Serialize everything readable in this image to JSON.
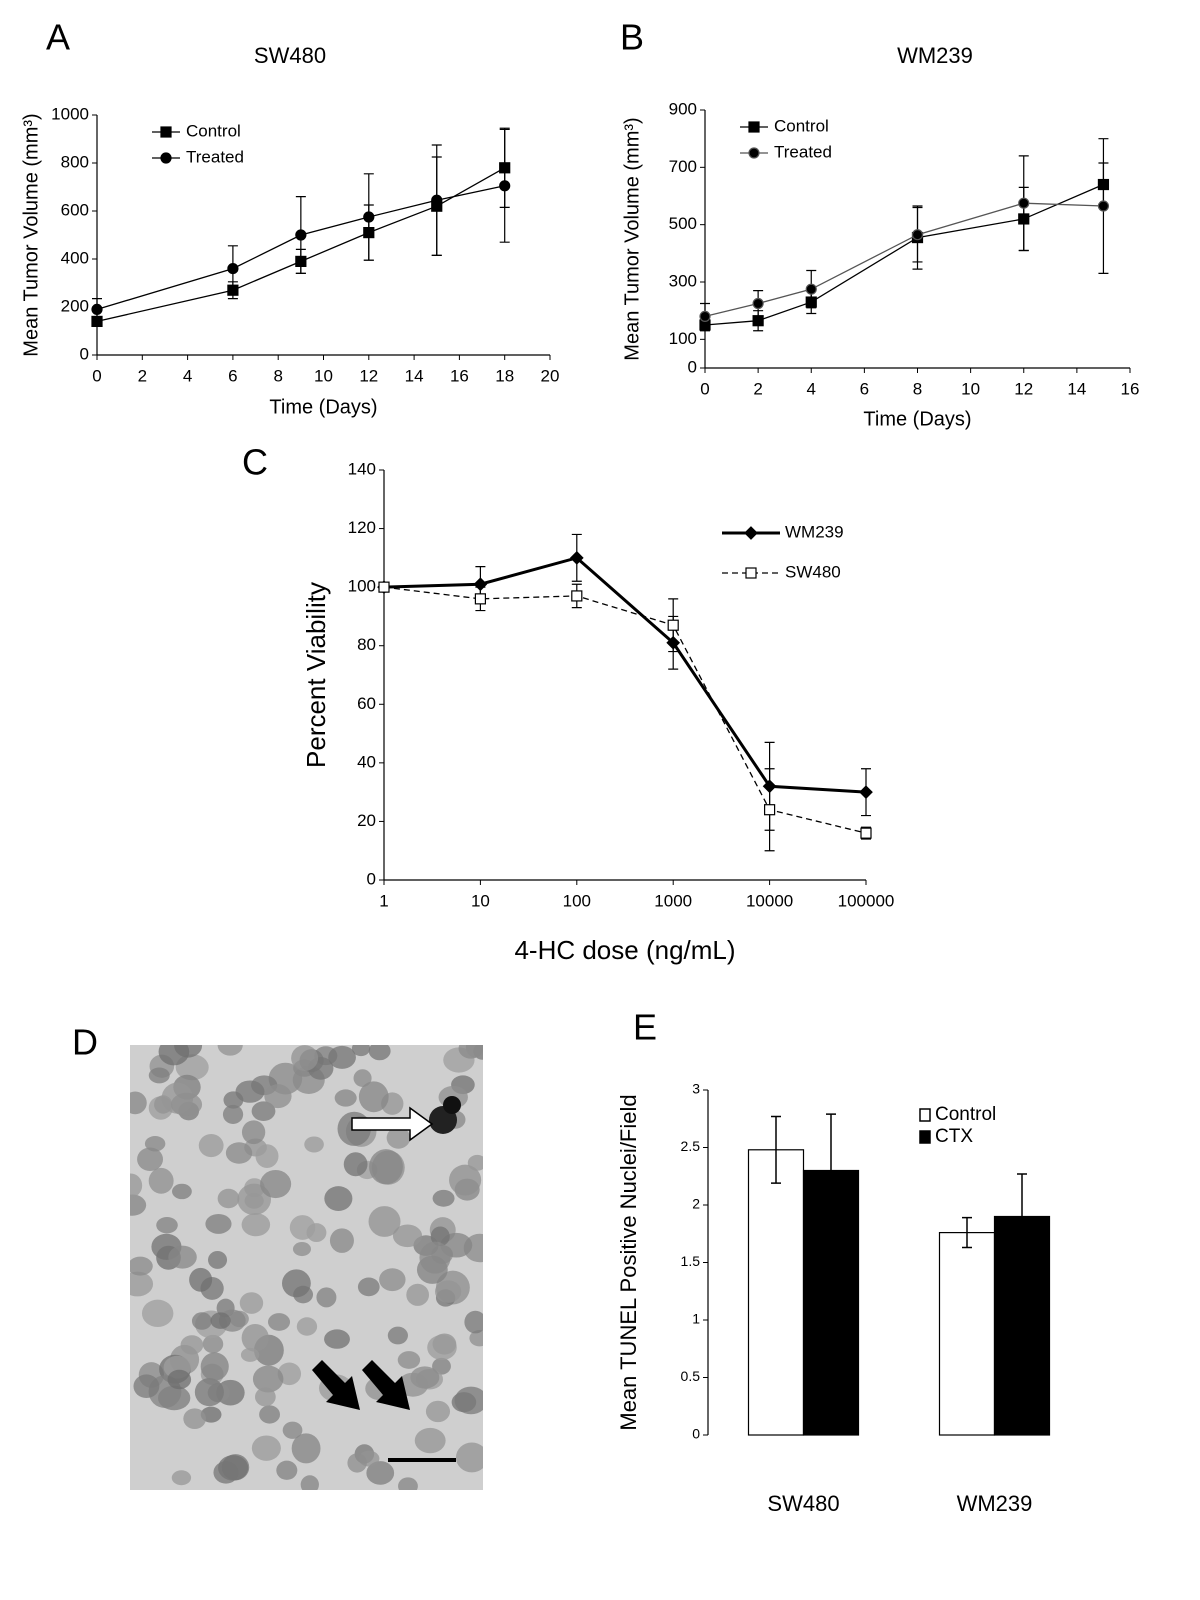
{
  "chart_data": [
    {
      "type": "line",
      "label": "A",
      "title": "SW480",
      "xlabel": "Time (Days)",
      "ylabel": "Mean Tumor Volume (mm³)",
      "xlim": [
        0,
        20
      ],
      "xticks": [
        0,
        2,
        4,
        6,
        8,
        10,
        12,
        14,
        16,
        18,
        20
      ],
      "ylim": [
        0,
        1000
      ],
      "yticks": [
        0,
        200,
        400,
        600,
        800,
        1000
      ],
      "series": [
        {
          "name": "Control",
          "color": "#000000",
          "marker": "square",
          "marker_fill": "#000000",
          "x": [
            0,
            6,
            9,
            12,
            15,
            18
          ],
          "values": [
            140,
            270,
            390,
            510,
            620,
            780
          ],
          "errors": [
            20,
            35,
            50,
            115,
            205,
            165
          ]
        },
        {
          "name": "Treated",
          "color": "#000000",
          "marker": "circle",
          "marker_fill": "#000000",
          "x": [
            0,
            6,
            9,
            12,
            15,
            18
          ],
          "values": [
            190,
            360,
            500,
            575,
            645,
            705
          ],
          "errors": [
            45,
            95,
            160,
            180,
            230,
            235
          ]
        }
      ]
    },
    {
      "type": "line",
      "label": "B",
      "title": "WM239",
      "xlabel": "Time (Days)",
      "ylabel": "Mean Tumor Volume (mm³)",
      "xlim": [
        0,
        16
      ],
      "xticks": [
        0,
        2,
        4,
        6,
        8,
        10,
        12,
        14,
        16
      ],
      "ylim": [
        0,
        900
      ],
      "yticks": [
        0,
        100,
        300,
        500,
        700,
        900
      ],
      "series": [
        {
          "name": "Control",
          "color": "#000000",
          "marker": "square",
          "marker_fill": "#000000",
          "x": [
            0,
            2,
            4,
            8,
            12,
            15
          ],
          "values": [
            150,
            165,
            230,
            455,
            520,
            640
          ],
          "errors": [
            20,
            35,
            40,
            110,
            110,
            75
          ]
        },
        {
          "name": "Treated",
          "color": "#555555",
          "marker": "circle",
          "marker_fill": "#000000",
          "x": [
            0,
            2,
            4,
            8,
            12,
            15
          ],
          "values": [
            180,
            225,
            275,
            465,
            575,
            565
          ],
          "errors": [
            45,
            45,
            65,
            95,
            165,
            235
          ]
        }
      ]
    },
    {
      "type": "line",
      "label": "C",
      "xlabel": "4-HC dose (ng/mL)",
      "ylabel": "Percent Viability",
      "xscale": "log",
      "xlim": [
        1,
        100000
      ],
      "xticks": [
        1,
        10,
        100,
        1000,
        10000,
        100000
      ],
      "ylim": [
        0,
        140
      ],
      "yticks": [
        0,
        20,
        40,
        60,
        80,
        100,
        120,
        140
      ],
      "series": [
        {
          "name": "WM239",
          "color": "#000000",
          "marker": "diamond",
          "marker_fill": "#000000",
          "linewidth": 3,
          "x": [
            1,
            10,
            100,
            1000,
            10000,
            100000
          ],
          "values": [
            100,
            101,
            110,
            81,
            32,
            30
          ],
          "errors": [
            0,
            6,
            8,
            9,
            15,
            8
          ]
        },
        {
          "name": "SW480",
          "color": "#000000",
          "marker": "square",
          "marker_fill": "#ffffff",
          "dashed": true,
          "x": [
            1,
            10,
            100,
            1000,
            10000,
            100000
          ],
          "values": [
            100,
            96,
            97,
            87,
            24,
            16
          ],
          "errors": [
            0,
            4,
            4,
            9,
            14,
            2
          ]
        }
      ]
    },
    {
      "type": "image",
      "label": "D"
    },
    {
      "type": "bar",
      "label": "E",
      "ylabel": "Mean TUNEL Positive Nuclei/Field",
      "categories": [
        "SW480",
        "WM239"
      ],
      "ylim": [
        0,
        3
      ],
      "yticks": [
        0,
        0.5,
        1,
        1.5,
        2,
        2.5,
        3
      ],
      "series": [
        {
          "name": "Control",
          "color": "#ffffff",
          "values": [
            2.48,
            1.76
          ],
          "errors": [
            0.29,
            0.13
          ]
        },
        {
          "name": "CTX",
          "color": "#000000",
          "values": [
            2.3,
            1.9
          ],
          "errors": [
            0.49,
            0.37
          ]
        }
      ]
    }
  ]
}
